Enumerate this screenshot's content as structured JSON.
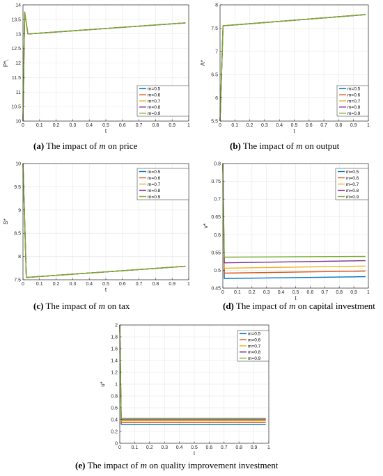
{
  "legend_labels": [
    "m=0.5",
    "m=0.6",
    "m=0.7",
    "m=0.8",
    "m=0.9"
  ],
  "series_colors": [
    "#0072bd",
    "#d95319",
    "#edb120",
    "#7e2f8e",
    "#77ac30"
  ],
  "chart_data": [
    {
      "type": "line",
      "caption": {
        "letter": "(a)",
        "pre": " The impact of ",
        "sym": "m",
        "post": " on price"
      },
      "xlabel": "t",
      "ylabel": "P*₁",
      "xlim": [
        0,
        1
      ],
      "ylim": [
        10,
        14
      ],
      "xticks": [
        "0",
        "0.1",
        "0.2",
        "0.3",
        "0.4",
        "0.5",
        "0.6",
        "0.7",
        "0.8",
        "0.9",
        "1"
      ],
      "yticks": [
        "10",
        "10.5",
        "11",
        "11.5",
        "12",
        "12.5",
        "13",
        "13.5",
        "14"
      ],
      "grid": true,
      "legend_position": "bottom-right",
      "series": [
        {
          "name": "m=0.5",
          "x": [
            0,
            0.01,
            0.03,
            0.98
          ],
          "y": [
            10,
            13.75,
            13.0,
            13.38
          ]
        },
        {
          "name": "m=0.6",
          "x": [
            0,
            0.01,
            0.03,
            0.98
          ],
          "y": [
            10,
            13.75,
            13.0,
            13.38
          ]
        },
        {
          "name": "m=0.7",
          "x": [
            0,
            0.01,
            0.03,
            0.98
          ],
          "y": [
            10,
            13.75,
            13.0,
            13.38
          ]
        },
        {
          "name": "m=0.8",
          "x": [
            0,
            0.01,
            0.03,
            0.98
          ],
          "y": [
            10,
            13.75,
            13.0,
            13.38
          ]
        },
        {
          "name": "m=0.9",
          "x": [
            0,
            0.01,
            0.03,
            0.98
          ],
          "y": [
            10,
            13.75,
            13.0,
            13.38
          ]
        }
      ]
    },
    {
      "type": "line",
      "caption": {
        "letter": "(b)",
        "pre": " The impact of ",
        "sym": "m",
        "post": " on output"
      },
      "xlabel": "t",
      "ylabel": "A*",
      "xlim": [
        0,
        1
      ],
      "ylim": [
        5.5,
        8
      ],
      "xticks": [
        "0",
        "0.1",
        "0.2",
        "0.3",
        "0.4",
        "0.5",
        "0.6",
        "0.7",
        "0.8",
        "0.9",
        "1"
      ],
      "yticks": [
        "5.5",
        "6",
        "6.5",
        "7",
        "7.5",
        "8"
      ],
      "grid": true,
      "legend_position": "bottom-right",
      "series": [
        {
          "name": "m=0.5",
          "x": [
            0,
            0.02,
            0.98
          ],
          "y": [
            5.5,
            7.55,
            7.79
          ]
        },
        {
          "name": "m=0.6",
          "x": [
            0,
            0.02,
            0.98
          ],
          "y": [
            5.5,
            7.55,
            7.79
          ]
        },
        {
          "name": "m=0.7",
          "x": [
            0,
            0.02,
            0.98
          ],
          "y": [
            5.5,
            7.55,
            7.79
          ]
        },
        {
          "name": "m=0.8",
          "x": [
            0,
            0.02,
            0.98
          ],
          "y": [
            5.5,
            7.55,
            7.79
          ]
        },
        {
          "name": "m=0.9",
          "x": [
            0,
            0.02,
            0.98
          ],
          "y": [
            5.5,
            7.55,
            7.79
          ]
        }
      ]
    },
    {
      "type": "line",
      "caption": {
        "letter": "(c)",
        "pre": " The impact of ",
        "sym": "m",
        "post": " on tax"
      },
      "xlabel": "t",
      "ylabel": "S*",
      "xlim": [
        0,
        1
      ],
      "ylim": [
        7.5,
        10
      ],
      "xticks": [
        "0",
        "0.1",
        "0.2",
        "0.3",
        "0.4",
        "0.5",
        "0.6",
        "0.7",
        "0.8",
        "0.9",
        "1"
      ],
      "yticks": [
        "7.5",
        "8",
        "8.5",
        "9",
        "9.5",
        "10"
      ],
      "grid": true,
      "legend_position": "top-right",
      "series": [
        {
          "name": "m=0.5",
          "x": [
            0,
            0.02,
            0.98
          ],
          "y": [
            10,
            7.55,
            7.79
          ]
        },
        {
          "name": "m=0.6",
          "x": [
            0,
            0.02,
            0.98
          ],
          "y": [
            10,
            7.55,
            7.79
          ]
        },
        {
          "name": "m=0.7",
          "x": [
            0,
            0.02,
            0.98
          ],
          "y": [
            10,
            7.55,
            7.79
          ]
        },
        {
          "name": "m=0.8",
          "x": [
            0,
            0.02,
            0.98
          ],
          "y": [
            10,
            7.55,
            7.79
          ]
        },
        {
          "name": "m=0.9",
          "x": [
            0,
            0.02,
            0.98
          ],
          "y": [
            10,
            7.55,
            7.79
          ]
        }
      ]
    },
    {
      "type": "line",
      "caption": {
        "letter": "(d)",
        "pre": " The impact of ",
        "sym": "m",
        "post": " on capital investment"
      },
      "xlabel": "t",
      "ylabel": "v*",
      "xlim": [
        0,
        1
      ],
      "ylim": [
        0.45,
        0.8
      ],
      "xticks": [
        "0",
        "0.1",
        "0.2",
        "0.3",
        "0.4",
        "0.5",
        "0.6",
        "0.7",
        "0.8",
        "0.9",
        "1"
      ],
      "yticks": [
        "0.45",
        "0.5",
        "0.55",
        "0.6",
        "0.65",
        "0.7",
        "0.75",
        "0.8"
      ],
      "grid": true,
      "legend_position": "top-right",
      "series": [
        {
          "name": "m=0.5",
          "x": [
            0,
            0.01,
            0.98
          ],
          "y": [
            0.8,
            0.477,
            0.482
          ]
        },
        {
          "name": "m=0.6",
          "x": [
            0,
            0.01,
            0.98
          ],
          "y": [
            0.8,
            0.492,
            0.498
          ]
        },
        {
          "name": "m=0.7",
          "x": [
            0,
            0.01,
            0.98
          ],
          "y": [
            0.8,
            0.506,
            0.512
          ]
        },
        {
          "name": "m=0.8",
          "x": [
            0,
            0.01,
            0.98
          ],
          "y": [
            0.8,
            0.521,
            0.527
          ]
        },
        {
          "name": "m=0.9",
          "x": [
            0,
            0.01,
            0.98
          ],
          "y": [
            0.8,
            0.537,
            0.539
          ]
        }
      ]
    },
    {
      "type": "line",
      "caption": {
        "letter": "(e)",
        "pre": " The impact of ",
        "sym": "m",
        "post": " on quality improvement investment"
      },
      "xlabel": "t",
      "ylabel": "u*",
      "xlim": [
        0,
        1
      ],
      "ylim": [
        0,
        2
      ],
      "xticks": [
        "0",
        "0.1",
        "0.2",
        "0.3",
        "0.4",
        "0.5",
        "0.6",
        "0.7",
        "0.8",
        "0.9",
        "1"
      ],
      "yticks": [
        "0",
        "0.2",
        "0.4",
        "0.6",
        "0.8",
        "1",
        "1.2",
        "1.4",
        "1.6",
        "1.8",
        "2"
      ],
      "grid": true,
      "legend_position": "top-right",
      "series": [
        {
          "name": "m=0.5",
          "x": [
            0,
            0.01,
            0.98
          ],
          "y": [
            2,
            0.32,
            0.32
          ]
        },
        {
          "name": "m=0.6",
          "x": [
            0,
            0.01,
            0.98
          ],
          "y": [
            2,
            0.35,
            0.35
          ]
        },
        {
          "name": "m=0.7",
          "x": [
            0,
            0.01,
            0.98
          ],
          "y": [
            2,
            0.38,
            0.38
          ]
        },
        {
          "name": "m=0.8",
          "x": [
            0,
            0.01,
            0.98
          ],
          "y": [
            2,
            0.4,
            0.4
          ]
        },
        {
          "name": "m=0.9",
          "x": [
            0,
            0.01,
            0.98
          ],
          "y": [
            2,
            0.42,
            0.42
          ]
        }
      ]
    }
  ]
}
